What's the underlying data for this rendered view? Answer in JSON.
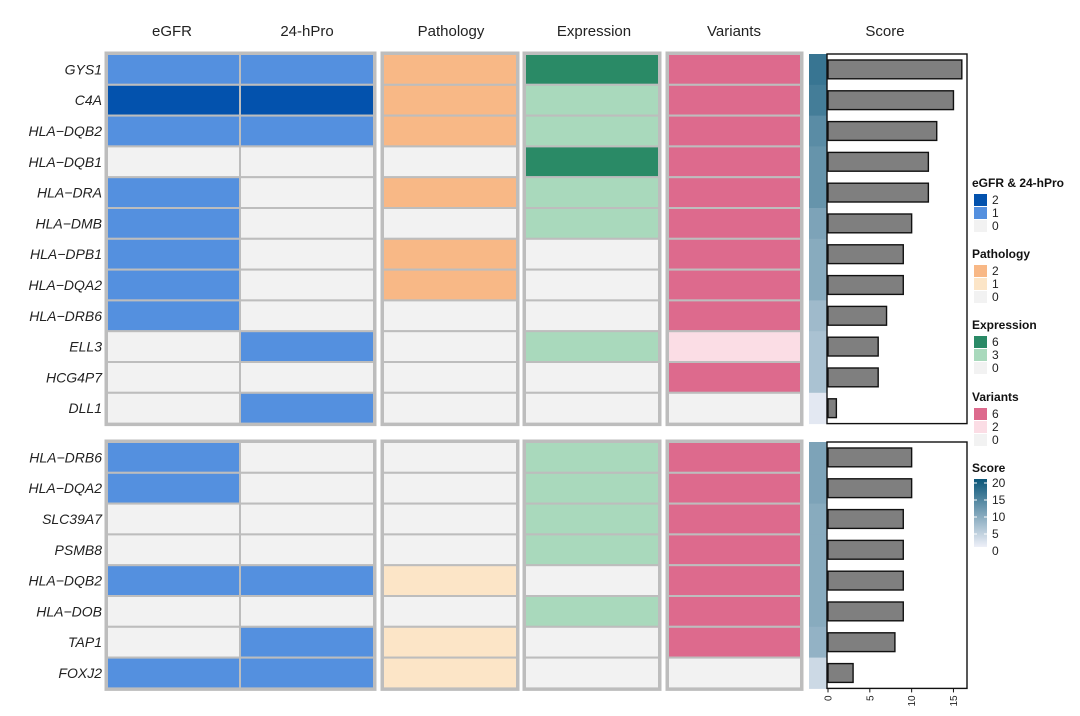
{
  "chart_data": {
    "type": "heatmap",
    "column_titles": {
      "egfr": "eGFR",
      "pro": "24-hPro",
      "pathology": "Pathology",
      "expression": "Expression",
      "variants": "Variants",
      "score": "Score"
    },
    "panels": [
      {
        "genes": [
          "GYS1",
          "C4A",
          "HLA−DQB2",
          "HLA−DQB1",
          "HLA−DRA",
          "HLA−DMB",
          "HLA−DPB1",
          "HLA−DQA2",
          "HLA−DRB6",
          "ELL3",
          "HCG4P7",
          "DLL1"
        ],
        "egfr": [
          1,
          2,
          1,
          0,
          1,
          1,
          1,
          1,
          1,
          0,
          0,
          0
        ],
        "pro": [
          1,
          2,
          1,
          0,
          0,
          0,
          0,
          0,
          0,
          1,
          0,
          1
        ],
        "pathology": [
          2,
          2,
          2,
          0,
          2,
          0,
          2,
          2,
          0,
          0,
          0,
          0
        ],
        "expression": [
          6,
          3,
          3,
          6,
          3,
          3,
          0,
          0,
          0,
          3,
          0,
          0
        ],
        "variants": [
          6,
          6,
          6,
          6,
          6,
          6,
          6,
          6,
          6,
          2,
          6,
          0
        ],
        "score": [
          16,
          15,
          13,
          12,
          12,
          10,
          9,
          9,
          7,
          6,
          6,
          1
        ]
      },
      {
        "genes": [
          "HLA−DRB6",
          "HLA−DQA2",
          "SLC39A7",
          "PSMB8",
          "HLA−DQB2",
          "HLA−DOB",
          "TAP1",
          "FOXJ2"
        ],
        "egfr": [
          1,
          1,
          0,
          0,
          1,
          0,
          0,
          1
        ],
        "pro": [
          0,
          0,
          0,
          0,
          1,
          0,
          1,
          1
        ],
        "pathology": [
          0,
          0,
          0,
          0,
          1,
          0,
          1,
          1
        ],
        "expression": [
          3,
          3,
          3,
          3,
          0,
          3,
          0,
          0
        ],
        "variants": [
          6,
          6,
          6,
          6,
          6,
          6,
          6,
          0
        ],
        "score": [
          10,
          10,
          9,
          9,
          9,
          9,
          8,
          3
        ]
      }
    ],
    "score_axis": {
      "min": 0,
      "max": 16.5,
      "ticks": [
        0,
        5,
        10,
        15
      ]
    },
    "legends": [
      {
        "key": "egfr_pro",
        "title": "eGFR & 24-hPro",
        "labels": [
          "2",
          "1",
          "0"
        ],
        "colors": [
          "#0352ad",
          "#5490df",
          "#f2f2f2"
        ]
      },
      {
        "key": "pathology",
        "title": "Pathology",
        "labels": [
          "2",
          "1",
          "0"
        ],
        "colors": [
          "#f8b886",
          "#fce5c7",
          "#f2f2f2"
        ]
      },
      {
        "key": "expression",
        "title": "Expression",
        "labels": [
          "6",
          "3",
          "0"
        ],
        "colors": [
          "#2a8a66",
          "#a9d9bc",
          "#f2f2f2"
        ]
      },
      {
        "key": "variants",
        "title": "Variants",
        "labels": [
          "6",
          "2",
          "0"
        ],
        "colors": [
          "#dd6a8d",
          "#fbdde5",
          "#f2f2f2"
        ]
      },
      {
        "key": "score",
        "title": "Score",
        "labels": [
          "20",
          "15",
          "10",
          "5",
          "0"
        ],
        "colors": [
          "#0b5678",
          "#eef0f8"
        ]
      }
    ]
  },
  "colors": {
    "egfr_pro": {
      "0": "#f2f2f2",
      "1": "#5490df",
      "2": "#0352ad"
    },
    "pathology": {
      "0": "#f2f2f2",
      "1": "#fce5c7",
      "2": "#f8b886"
    },
    "expression": {
      "0": "#f2f2f2",
      "3": "#a9d9bc",
      "6": "#2a8a66"
    },
    "variants": {
      "0": "#f2f2f2",
      "2": "#fbdde5",
      "6": "#dd6a8d"
    },
    "score_low": "#eef0f8",
    "score_high": "#0b5678",
    "bar_fill": "#7f7f7f",
    "grid_border": "#bdbdbd"
  }
}
